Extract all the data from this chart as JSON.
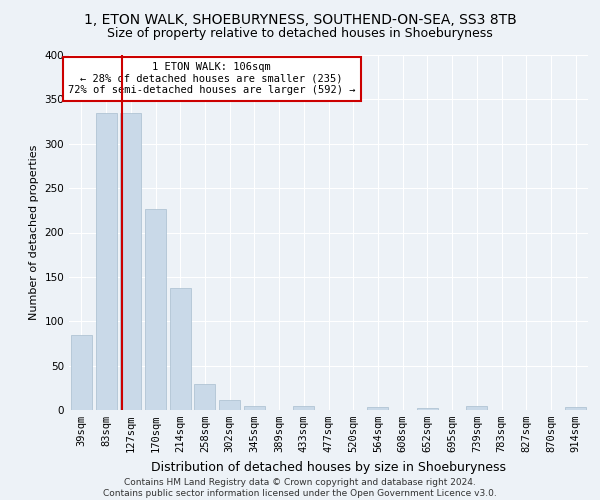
{
  "title": "1, ETON WALK, SHOEBURYNESS, SOUTHEND-ON-SEA, SS3 8TB",
  "subtitle": "Size of property relative to detached houses in Shoeburyness",
  "xlabel": "Distribution of detached houses by size in Shoeburyness",
  "ylabel": "Number of detached properties",
  "categories": [
    "39sqm",
    "83sqm",
    "127sqm",
    "170sqm",
    "214sqm",
    "258sqm",
    "302sqm",
    "345sqm",
    "389sqm",
    "433sqm",
    "477sqm",
    "520sqm",
    "564sqm",
    "608sqm",
    "652sqm",
    "695sqm",
    "739sqm",
    "783sqm",
    "827sqm",
    "870sqm",
    "914sqm"
  ],
  "values": [
    85,
    335,
    335,
    227,
    137,
    29,
    11,
    4,
    0,
    4,
    0,
    0,
    3,
    0,
    2,
    0,
    4,
    0,
    0,
    0,
    3
  ],
  "bar_color": "#c9d9e8",
  "bar_edge_color": "#a8bece",
  "vline_x": 1.65,
  "vline_color": "#cc0000",
  "annotation_text": "1 ETON WALK: 106sqm\n← 28% of detached houses are smaller (235)\n72% of semi-detached houses are larger (592) →",
  "annotation_box_color": "white",
  "annotation_box_edge": "#cc0000",
  "ylim": [
    0,
    400
  ],
  "yticks": [
    0,
    50,
    100,
    150,
    200,
    250,
    300,
    350,
    400
  ],
  "footer_text": "Contains HM Land Registry data © Crown copyright and database right 2024.\nContains public sector information licensed under the Open Government Licence v3.0.",
  "bg_color": "#edf2f7",
  "plot_bg_color": "#edf2f7",
  "grid_color": "#ffffff",
  "title_fontsize": 10,
  "subtitle_fontsize": 9,
  "xlabel_fontsize": 9,
  "ylabel_fontsize": 8,
  "tick_fontsize": 7.5,
  "footer_fontsize": 6.5,
  "annot_fontsize": 7.5
}
